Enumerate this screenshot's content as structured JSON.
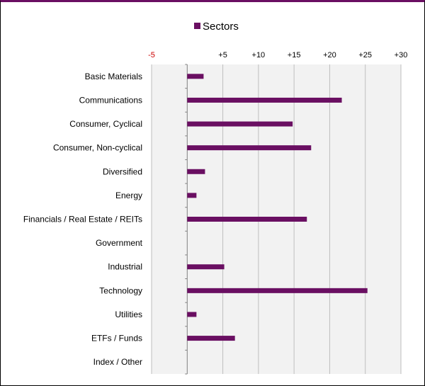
{
  "chart_data": {
    "type": "bar",
    "orientation": "horizontal",
    "title": "",
    "xlabel": "",
    "ylabel": "",
    "legend": {
      "position": "top",
      "entries": [
        "Sectors"
      ]
    },
    "xlim": [
      -5,
      30
    ],
    "xticks": [
      -5,
      0,
      5,
      10,
      15,
      20,
      25,
      30
    ],
    "xtick_labels": [
      "-5",
      "",
      "+5",
      "+10",
      "+15",
      "+20",
      "+25",
      "+30"
    ],
    "grid": true,
    "categories": [
      "Basic Materials",
      "Communications",
      "Consumer, Cyclical",
      "Consumer, Non-cyclical",
      "Diversified",
      "Energy",
      "Financials / Real Estate / REITs",
      "Government",
      "Industrial",
      "Technology",
      "Utilities",
      "ETFs / Funds",
      "Index / Other"
    ],
    "series": [
      {
        "name": "Sectors",
        "values": [
          2.3,
          21.7,
          14.8,
          17.4,
          2.5,
          1.3,
          16.8,
          0,
          5.2,
          25.3,
          1.3,
          6.7,
          0
        ]
      }
    ],
    "colors": {
      "bar": "#6a0f62",
      "negative_tick": "#cc0000",
      "tick": "#000000",
      "plot_background": "#f2f2f2",
      "grid": "#bfbfbf"
    }
  }
}
